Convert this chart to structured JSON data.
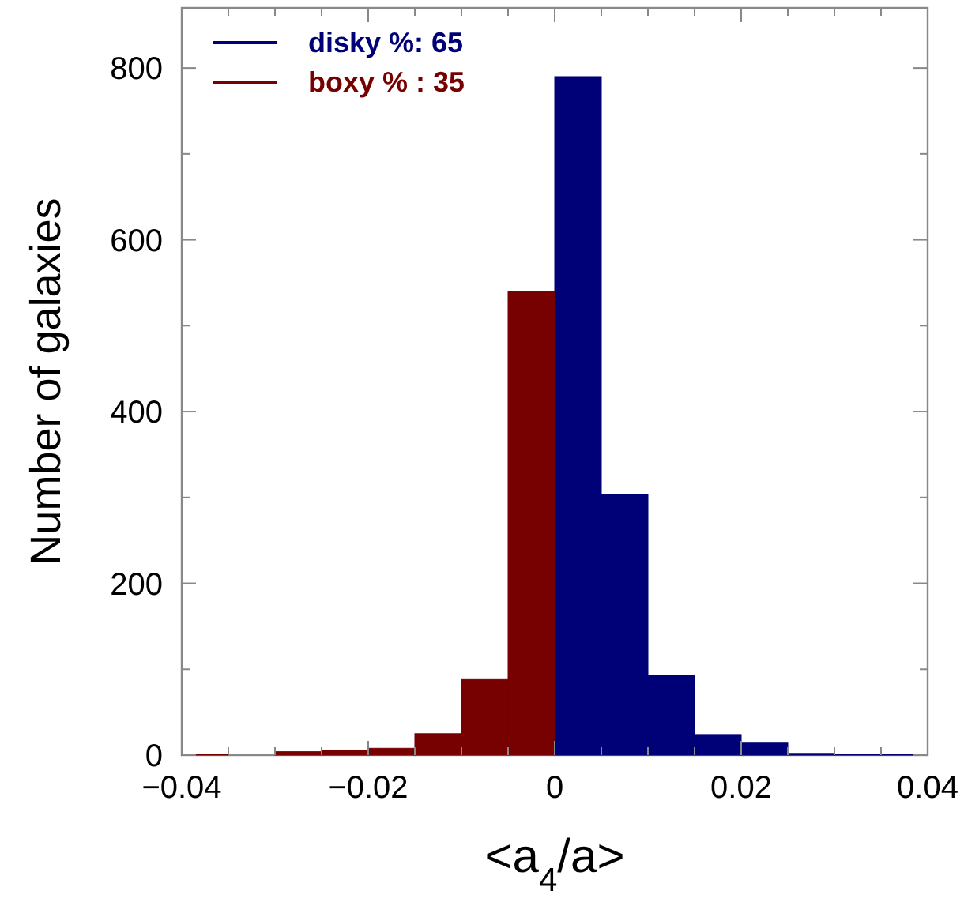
{
  "chart_data": {
    "type": "histogram",
    "xlabel": "<a$_{4}$/a>",
    "ylabel": "Number of galaxies",
    "bins": [
      -0.04,
      -0.035,
      -0.03,
      -0.025,
      -0.02,
      -0.015,
      -0.01,
      -0.005,
      0,
      0.005,
      0.01,
      0.015,
      0.02,
      0.025,
      0.03,
      0.035,
      0.04
    ],
    "series": [
      {
        "name": "disky %: 65",
        "color": "#000077",
        "values": [
          null,
          null,
          null,
          null,
          null,
          null,
          null,
          null,
          790,
          303,
          93,
          24,
          14,
          2,
          1,
          1
        ]
      },
      {
        "name": "boxy % : 35",
        "color": "#770000",
        "values": [
          1,
          0,
          4,
          6,
          8,
          25,
          88,
          540,
          null,
          null,
          null,
          null,
          null,
          null,
          null,
          null
        ]
      }
    ],
    "xlim": [
      -0.04,
      0.04
    ],
    "xticks": [
      {
        "value": -0.04,
        "label": "−0.04"
      },
      {
        "value": -0.035,
        "label": null
      },
      {
        "value": -0.03,
        "label": null
      },
      {
        "value": -0.025,
        "label": null
      },
      {
        "value": -0.02,
        "label": "−0.02"
      },
      {
        "value": -0.015,
        "label": null
      },
      {
        "value": -0.01,
        "label": null
      },
      {
        "value": -0.005,
        "label": null
      },
      0,
      {
        "value": 0.005,
        "label": null
      },
      {
        "value": 0.01,
        "label": null
      },
      {
        "value": 0.015,
        "label": null
      },
      0.02,
      {
        "value": 0.025,
        "label": null
      },
      {
        "value": 0.03,
        "label": null
      },
      {
        "value": 0.035,
        "label": null
      },
      0.04
    ],
    "ylim": [
      0,
      870
    ],
    "yticks": [
      0,
      {
        "value": 100,
        "label": null
      },
      200,
      {
        "value": 300,
        "label": null
      },
      400,
      {
        "value": 500,
        "label": null
      },
      600,
      {
        "value": 700,
        "label": null
      },
      800
    ],
    "legend": "top left",
    "grid": false
  }
}
